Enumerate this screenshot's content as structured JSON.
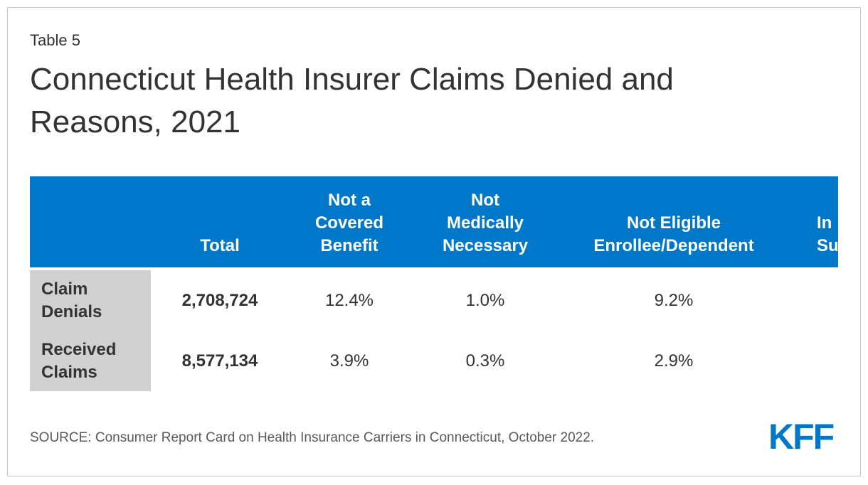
{
  "header": {
    "label": "Table 5",
    "title": "Connecticut Health Insurer Claims Denied and Reasons, 2021"
  },
  "table": {
    "columns": [
      "Total",
      "Not a\nCovered\nBenefit",
      "Not\nMedically\nNecessary",
      "Not Eligible\nEnrollee/Dependent",
      "In\nSu"
    ],
    "rows": [
      {
        "label": "Claim\nDenials",
        "values": [
          "2,708,724",
          "12.4%",
          "1.0%",
          "9.2%"
        ]
      },
      {
        "label": "Received\nClaims",
        "values": [
          "8,577,134",
          "3.9%",
          "0.3%",
          "2.9%"
        ]
      }
    ]
  },
  "footer": {
    "source": "SOURCE: Consumer Report Card on Health Insurance Carriers in Connecticut, October 2022.",
    "logo": "KFF"
  }
}
